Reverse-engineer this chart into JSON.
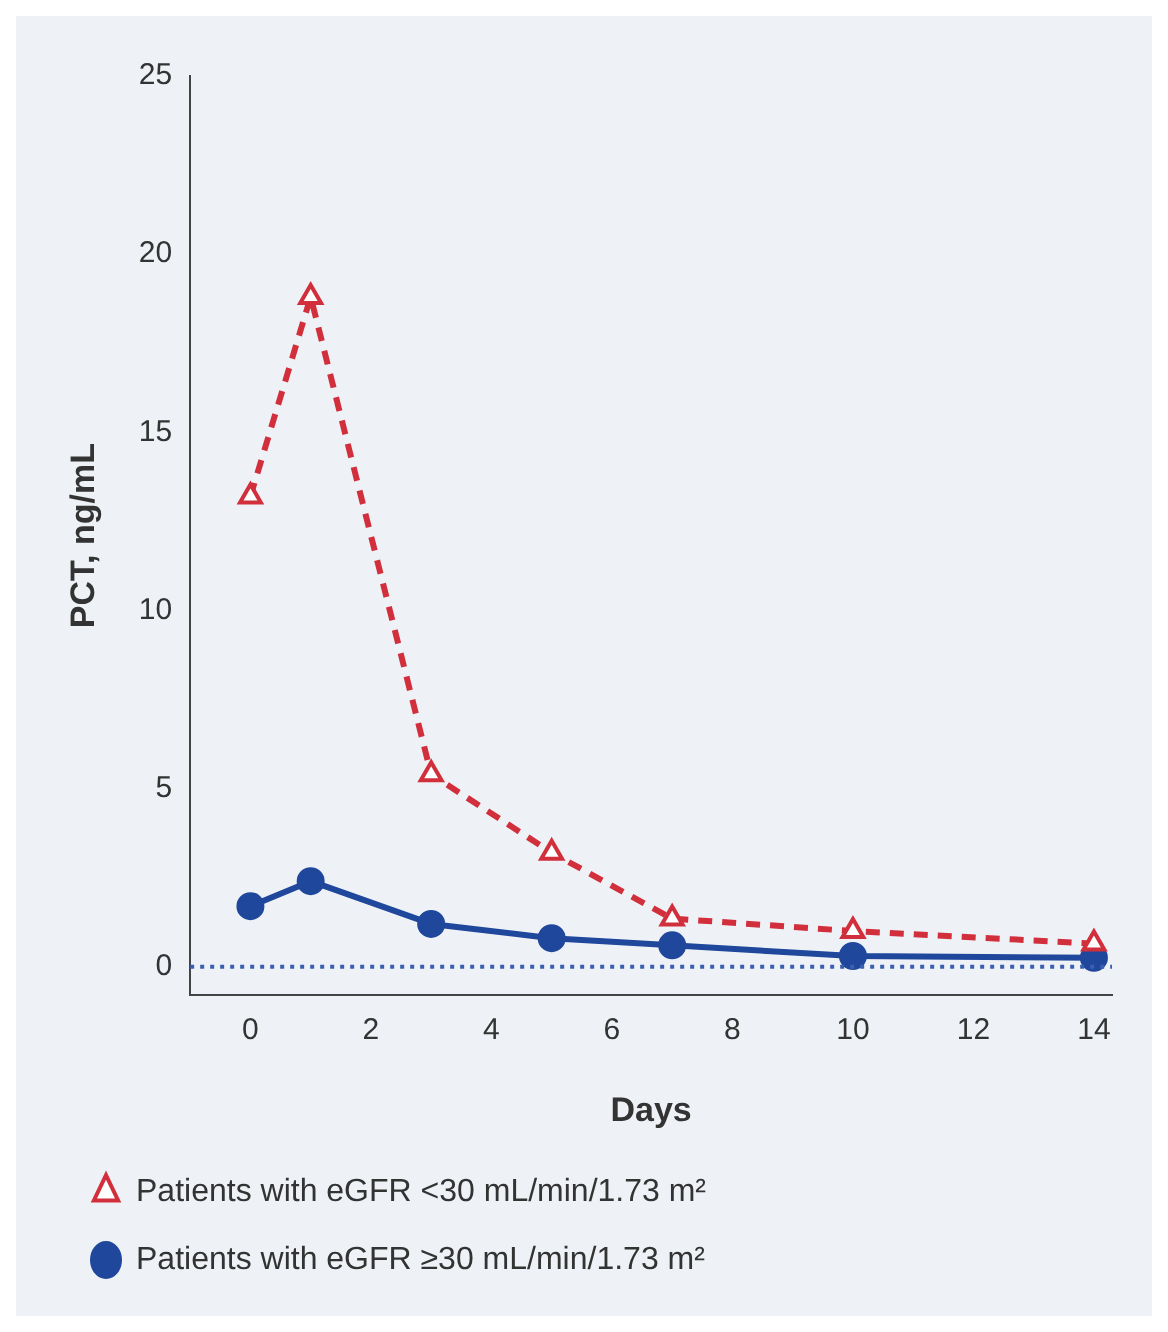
{
  "chart_data": {
    "type": "line",
    "xlabel": "Days",
    "ylabel": "PCT, ng/mL",
    "x": [
      0,
      1,
      3,
      5,
      7,
      10,
      14
    ],
    "series": [
      {
        "name": "Patients with eGFR <30 mL/min/1.73 m²",
        "color": "#d22f3c",
        "values": [
          13.2,
          18.8,
          5.4,
          3.2,
          1.35,
          1.0,
          0.65
        ],
        "marker": "triangle",
        "line_style": "dashed"
      },
      {
        "name": "Patients with eGFR ≥30 mL/min/1.73 m²",
        "color": "#1f479b",
        "values": [
          1.7,
          2.4,
          1.2,
          0.8,
          0.6,
          0.3,
          0.25
        ],
        "marker": "circle",
        "line_style": "solid"
      }
    ],
    "xlim": [
      -1,
      14.3
    ],
    "xticks": [
      0,
      2,
      4,
      6,
      8,
      10,
      12,
      14
    ],
    "ylim": [
      -0.8,
      25
    ],
    "yticks": [
      0,
      5,
      10,
      15,
      20,
      25
    ],
    "ref_lines": [
      {
        "axis": "y",
        "value": 0,
        "color": "#3a5fb0",
        "line_style": "dotted"
      }
    ],
    "grid": false,
    "legend": "bottom"
  }
}
